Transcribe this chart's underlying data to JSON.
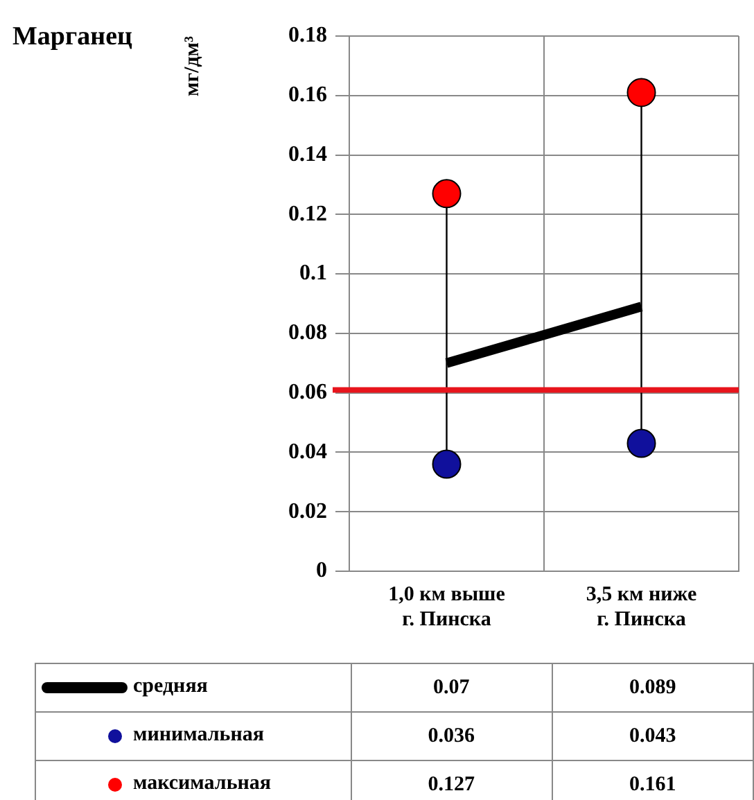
{
  "chart_data": {
    "type": "line",
    "title": "Марганец",
    "ylabel": "мг/дм³",
    "categories": [
      "1,0 км выше г. Пинска",
      "3,5 км ниже г. Пинска"
    ],
    "series": [
      {
        "name": "средняя",
        "color": "#000000",
        "marker": "none",
        "values": [
          0.07,
          0.089
        ]
      },
      {
        "name": "минимальная",
        "type": "scatter",
        "color": "#10109c",
        "marker": "circle",
        "values": [
          0.036,
          0.043
        ]
      },
      {
        "name": "максимальная",
        "type": "scatter",
        "color": "#ff0000",
        "marker": "circle",
        "values": [
          0.127,
          0.161
        ]
      }
    ],
    "ylim": [
      0,
      0.18
    ],
    "yticks": [
      0,
      0.02,
      0.04,
      0.06,
      0.08,
      0.1,
      0.12,
      0.14,
      0.16,
      0.18
    ],
    "ref_lines": [
      {
        "axis": "y",
        "value": 0.061,
        "color": "#e8141c"
      }
    ],
    "grid": true,
    "legend": "bottom",
    "data_labels": true
  }
}
